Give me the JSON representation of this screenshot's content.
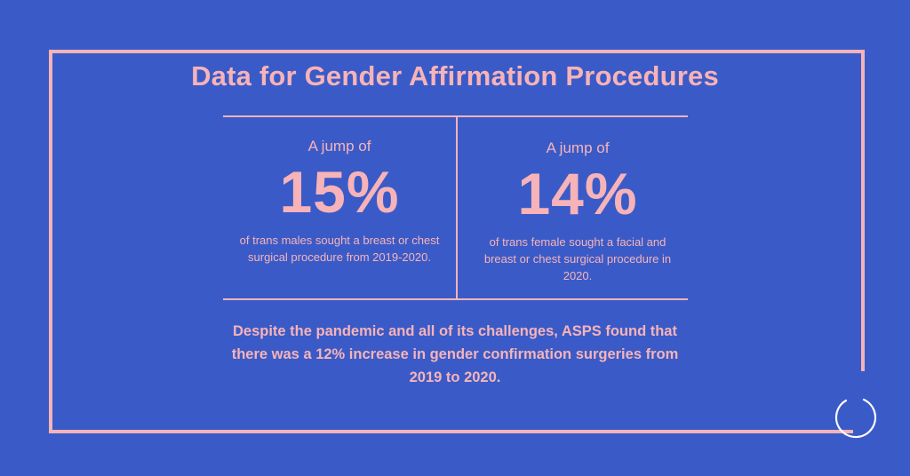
{
  "title": "Data for Gender Affirmation Procedures",
  "stats": [
    {
      "lead": "A jump of",
      "value": "15%",
      "description": "of trans males sought a breast or chest surgical procedure from 2019-2020."
    },
    {
      "lead": "A jump of",
      "value": "14%",
      "description": "of trans female sought a facial and breast or chest surgical procedure in 2020."
    }
  ],
  "summary": "Despite the pandemic and all of its challenges, ASPS found that there was a 12% increase in gender confirmation surgeries from 2019 to 2020.",
  "colors": {
    "background": "#3a5bc7",
    "accent": "#f7b3b8",
    "logo_stroke": "#ffffff"
  },
  "icons": {
    "logo": "circle-logo-icon"
  }
}
